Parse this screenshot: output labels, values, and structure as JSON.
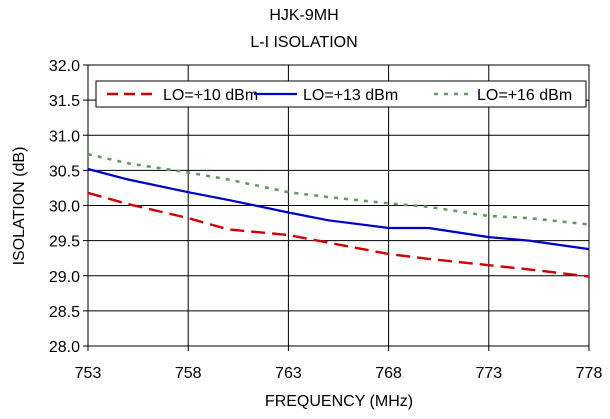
{
  "chart_data": {
    "type": "line",
    "title": "HJK-9MH",
    "subtitle": "L-I ISOLATION",
    "xlabel": "FREQUENCY (MHz)",
    "ylabel": "ISOLATION (dB)",
    "xlim": [
      753,
      778
    ],
    "ylim": [
      28.0,
      32.0
    ],
    "x_ticks": [
      "753",
      "758",
      "763",
      "768",
      "773",
      "778"
    ],
    "y_ticks": [
      "28.0",
      "28.5",
      "29.0",
      "29.5",
      "30.0",
      "30.5",
      "31.0",
      "31.5",
      "32.0"
    ],
    "grid": true,
    "legend_position": "top",
    "x": [
      753,
      755,
      758,
      760,
      763,
      765,
      768,
      770,
      773,
      775,
      778
    ],
    "series": [
      {
        "name": "LO=+10 dBm",
        "color": "#cc0000",
        "style": "dashed",
        "values": [
          30.18,
          30.02,
          29.82,
          29.66,
          29.58,
          29.47,
          29.31,
          29.24,
          29.15,
          29.09,
          28.99
        ]
      },
      {
        "name": "LO=+13 dBm",
        "color": "#0000cc",
        "style": "solid",
        "values": [
          30.52,
          30.37,
          30.19,
          30.08,
          29.9,
          29.79,
          29.68,
          29.68,
          29.55,
          29.5,
          29.38
        ]
      },
      {
        "name": "LO=+16 dBm",
        "color": "#669966",
        "style": "dotted",
        "values": [
          30.73,
          30.6,
          30.47,
          30.37,
          30.19,
          30.12,
          30.03,
          29.98,
          29.85,
          29.82,
          29.73
        ]
      }
    ]
  }
}
